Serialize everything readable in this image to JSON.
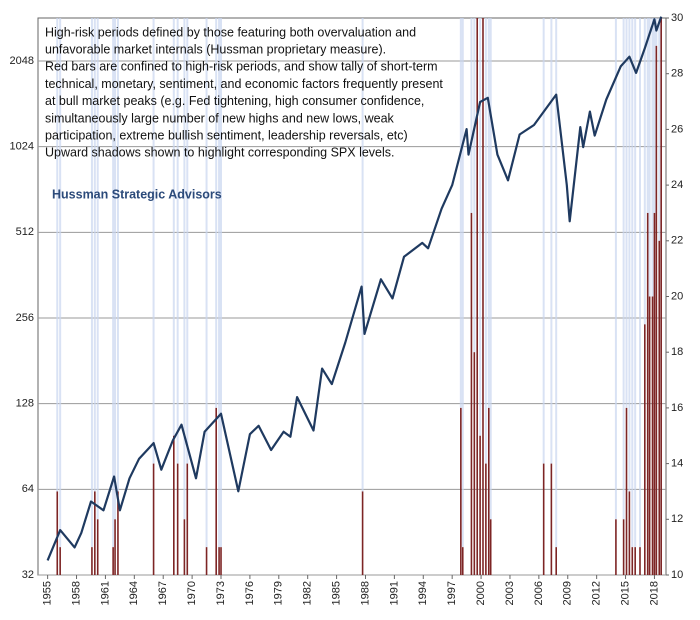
{
  "chart_data": {
    "type": "line",
    "annotation": [
      "High-risk periods defined by those featuring both overvaluation and",
      "unfavorable market internals (Hussman proprietary measure).",
      "Red bars are confined to high-risk periods, and show tally of short-term",
      "technical, monetary, sentiment, and economic factors frequently  present",
      "at bull market peaks (e.g. Fed tightening, high consumer confidence,",
      "simultaneously large number of new highs and new lows, weak",
      "participation, extreme bullish sentiment, leadership reversals, etc)",
      "Upward shadows shown to highlight corresponding SPX levels."
    ],
    "source": "Hussman Strategic Advisors",
    "xlim": [
      1954,
      2019.2
    ],
    "xticks": [
      1955,
      1958,
      1961,
      1964,
      1967,
      1970,
      1973,
      1976,
      1979,
      1982,
      1985,
      1988,
      1991,
      1994,
      1997,
      2000,
      2003,
      2006,
      2009,
      2012,
      2015,
      2018
    ],
    "ylim": [
      32,
      2900
    ],
    "ylog": true,
    "yticks": [
      32,
      64,
      128,
      256,
      512,
      1024,
      2048
    ],
    "y2lim": [
      10,
      30
    ],
    "y2ticks": [
      10,
      12,
      14,
      16,
      18,
      20,
      22,
      24,
      26,
      28,
      30
    ],
    "grid": true,
    "shadow_color": "#c9d6f0",
    "series": [
      {
        "type": "bar",
        "axis": "y2",
        "color": "#7d2525",
        "x": [
          1956.0,
          1956.3,
          1959.6,
          1959.9,
          1960.2,
          1961.8,
          1962.0,
          1962.3,
          1966.0,
          1968.1,
          1968.5,
          1969.2,
          1969.5,
          1971.5,
          1972.5,
          1972.8,
          1973.0,
          1987.7,
          1997.9,
          1998.1,
          1999.0,
          1999.3,
          1999.6,
          1999.9,
          2000.2,
          2000.5,
          2000.8,
          2001.0,
          2006.5,
          2007.3,
          2007.8,
          2014.0,
          2014.8,
          2015.1,
          2015.4,
          2015.7,
          2016.0,
          2016.5,
          2017.0,
          2017.3,
          2017.5,
          2017.8,
          2018.0,
          2018.2,
          2018.5,
          2018.7
        ],
        "values": [
          13,
          11,
          11,
          13,
          12,
          11,
          12,
          13,
          14,
          15,
          14,
          12,
          14,
          11,
          16,
          11,
          11,
          13,
          16,
          11,
          23,
          18,
          30,
          15,
          30,
          14,
          16,
          12,
          14,
          14,
          11,
          12,
          12,
          16,
          13,
          11,
          11,
          11,
          19,
          23,
          20,
          20,
          23,
          29,
          22,
          30
        ]
      },
      {
        "type": "line",
        "axis": "y",
        "color": "#1f3a60",
        "x": [
          1955.0,
          1956.3,
          1957.8,
          1958.5,
          1959.5,
          1960.8,
          1961.9,
          1962.5,
          1963.5,
          1964.5,
          1966.0,
          1966.8,
          1968.0,
          1968.9,
          1970.4,
          1971.3,
          1973.0,
          1974.8,
          1976.0,
          1976.9,
          1978.2,
          1979.5,
          1980.2,
          1980.9,
          1982.6,
          1983.5,
          1984.5,
          1985.9,
          1987.6,
          1987.9,
          1989.6,
          1990.8,
          1992.0,
          1993.9,
          1994.5,
          1995.9,
          1997.0,
          1998.5,
          1998.7,
          1999.9,
          2000.7,
          2001.7,
          2002.8,
          2004.0,
          2005.5,
          2007.8,
          2008.9,
          2009.2,
          2010.3,
          2010.6,
          2011.3,
          2011.8,
          2013.0,
          2014.5,
          2015.4,
          2016.1,
          2017.0,
          2018.0,
          2018.2,
          2018.7
        ],
        "values": [
          36,
          46,
          40,
          45,
          58,
          54,
          71,
          54,
          70,
          82,
          93,
          75,
          95,
          108,
          70,
          102,
          118,
          63,
          100,
          107,
          88,
          102,
          98,
          135,
          103,
          170,
          150,
          210,
          330,
          225,
          350,
          300,
          420,
          470,
          450,
          620,
          750,
          1180,
          960,
          1470,
          1520,
          960,
          780,
          1130,
          1220,
          1560,
          750,
          560,
          1200,
          1020,
          1360,
          1120,
          1500,
          1960,
          2120,
          1860,
          2270,
          2870,
          2620,
          2930
        ]
      }
    ]
  }
}
